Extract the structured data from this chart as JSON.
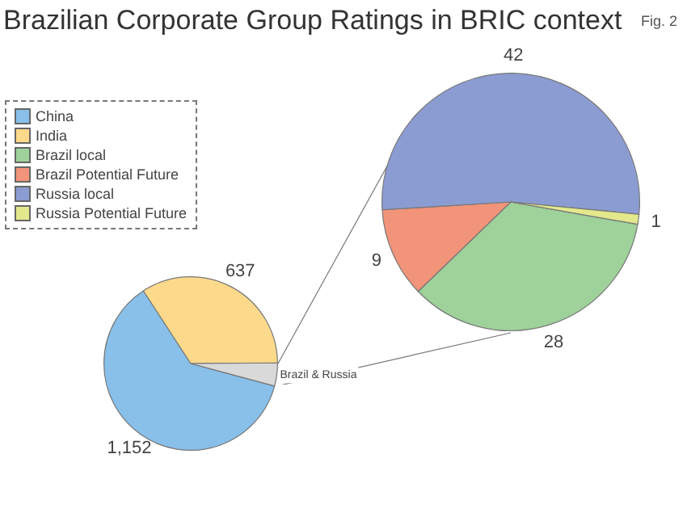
{
  "chart_data": [
    {
      "type": "pie",
      "title": "Brazilian Corporate Group Ratings in BRIC context",
      "annotations": [
        "Fig. 2"
      ],
      "categories": [
        "China",
        "India",
        "Brazil & Russia"
      ],
      "values": [
        1152,
        637,
        80
      ],
      "colors": [
        "#88c0ea",
        "#fdd98b",
        "#d9d9d9"
      ],
      "value_labels": [
        "1,152",
        "637",
        null
      ],
      "legend": "top left"
    },
    {
      "type": "pie",
      "categories": [
        "Brazil local",
        "Brazil Potential Future",
        "Russia local",
        "Russia Potential Future"
      ],
      "values": [
        28,
        9,
        42,
        1
      ],
      "colors": [
        "#9fd19b",
        "#f29479",
        "#8b9cd2",
        "#e3e88c"
      ],
      "data_labels": true,
      "legend": "top left"
    }
  ]
}
